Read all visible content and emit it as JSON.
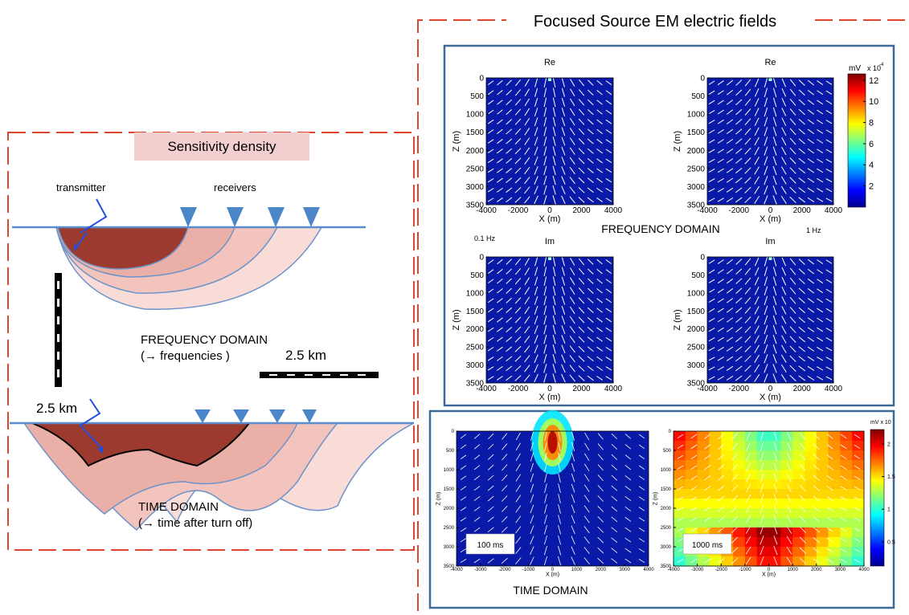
{
  "title": "Focused Source EM electric fields",
  "sensitivity": {
    "title": "Sensitivity density",
    "transmitter": "transmitter",
    "receivers": "receivers",
    "frequency_domain": "FREQUENCY DOMAIN",
    "frequency_note": "(→ frequencies )",
    "time_domain": "TIME DOMAIN",
    "time_note": "(→ time after turn off)",
    "scale_horizontal": "2.5 km",
    "scale_vertical": "2.5 km"
  },
  "frequency": {
    "label": "FREQUENCY DOMAIN",
    "left_frequency": "0.1 Hz",
    "right_frequency": "1 Hz",
    "panels": [
      {
        "title": "Re"
      },
      {
        "title": "Re"
      },
      {
        "title": "Im"
      },
      {
        "title": "Im"
      }
    ],
    "xlabel": "X (m)",
    "ylabel": "Z (m)",
    "xlim": [
      -4000,
      4000
    ],
    "ylim": [
      0,
      3500
    ],
    "xticks": [
      -4000,
      -2000,
      0,
      2000,
      4000
    ],
    "yticks": [
      0,
      500,
      1000,
      1500,
      2000,
      2500,
      3000,
      3500
    ],
    "colorbar": {
      "unit": "mV",
      "multiplier": "x 10",
      "exponent": "-4",
      "lim": [
        0,
        12.6
      ],
      "ticks": [
        2,
        4,
        6,
        8,
        10,
        12
      ]
    }
  },
  "time": {
    "label": "TIME DOMAIN",
    "panels": [
      {
        "time": "100 ms"
      },
      {
        "time": "1000 ms"
      }
    ],
    "xlabel": "X (m)",
    "ylabel": "Z (m)",
    "xlim": [
      -4000,
      4000
    ],
    "ylim": [
      0,
      3500
    ],
    "xticks": [
      -4000,
      -3000,
      -2000,
      -1000,
      0,
      1000,
      2000,
      3000,
      4000
    ],
    "yticks": [
      0,
      500,
      1000,
      1500,
      2000,
      2500,
      3000,
      3500
    ],
    "colorbar": {
      "unit": "mV x 10",
      "lim": [
        0.13,
        2.22
      ],
      "ticks": [
        0.5,
        1,
        1.5,
        2
      ]
    }
  }
}
